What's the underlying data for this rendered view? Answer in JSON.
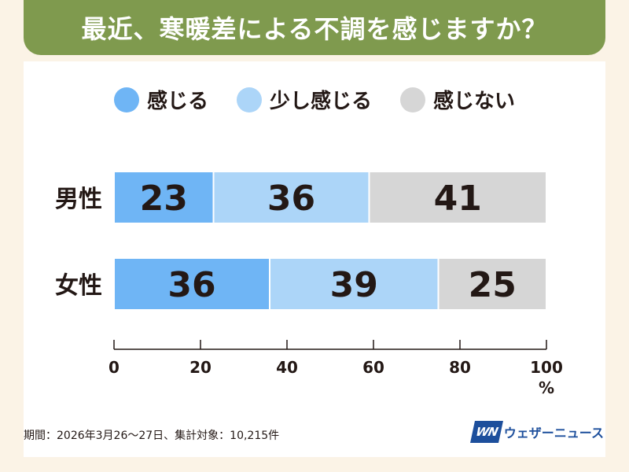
{
  "title": "最近、寒暖差による不調を感じますか？",
  "footnote": "期間：2026年3月26～27日、集計対象：10,215件",
  "brand": {
    "logo": "WN",
    "name": "ウェザーニュース"
  },
  "colors": {
    "banner": "#7f9a4e",
    "feel": "#6fb5f5",
    "slightly_feel": "#acd5f8",
    "not_feel": "#d6d6d6"
  },
  "chart_data": {
    "type": "bar",
    "orientation": "horizontal",
    "stacked": true,
    "categories": [
      "男性",
      "女性"
    ],
    "series": [
      {
        "name": "感じる",
        "values": [
          23,
          36
        ],
        "color": "#6fb5f5"
      },
      {
        "name": "少し感じる",
        "values": [
          36,
          39
        ],
        "color": "#acd5f8"
      },
      {
        "name": "感じない",
        "values": [
          41,
          25
        ],
        "color": "#d6d6d6"
      }
    ],
    "xlim": [
      0,
      100
    ],
    "xticks": [
      "0",
      "20",
      "40",
      "60",
      "80",
      "100"
    ],
    "xunit": "%",
    "legend": "top"
  }
}
